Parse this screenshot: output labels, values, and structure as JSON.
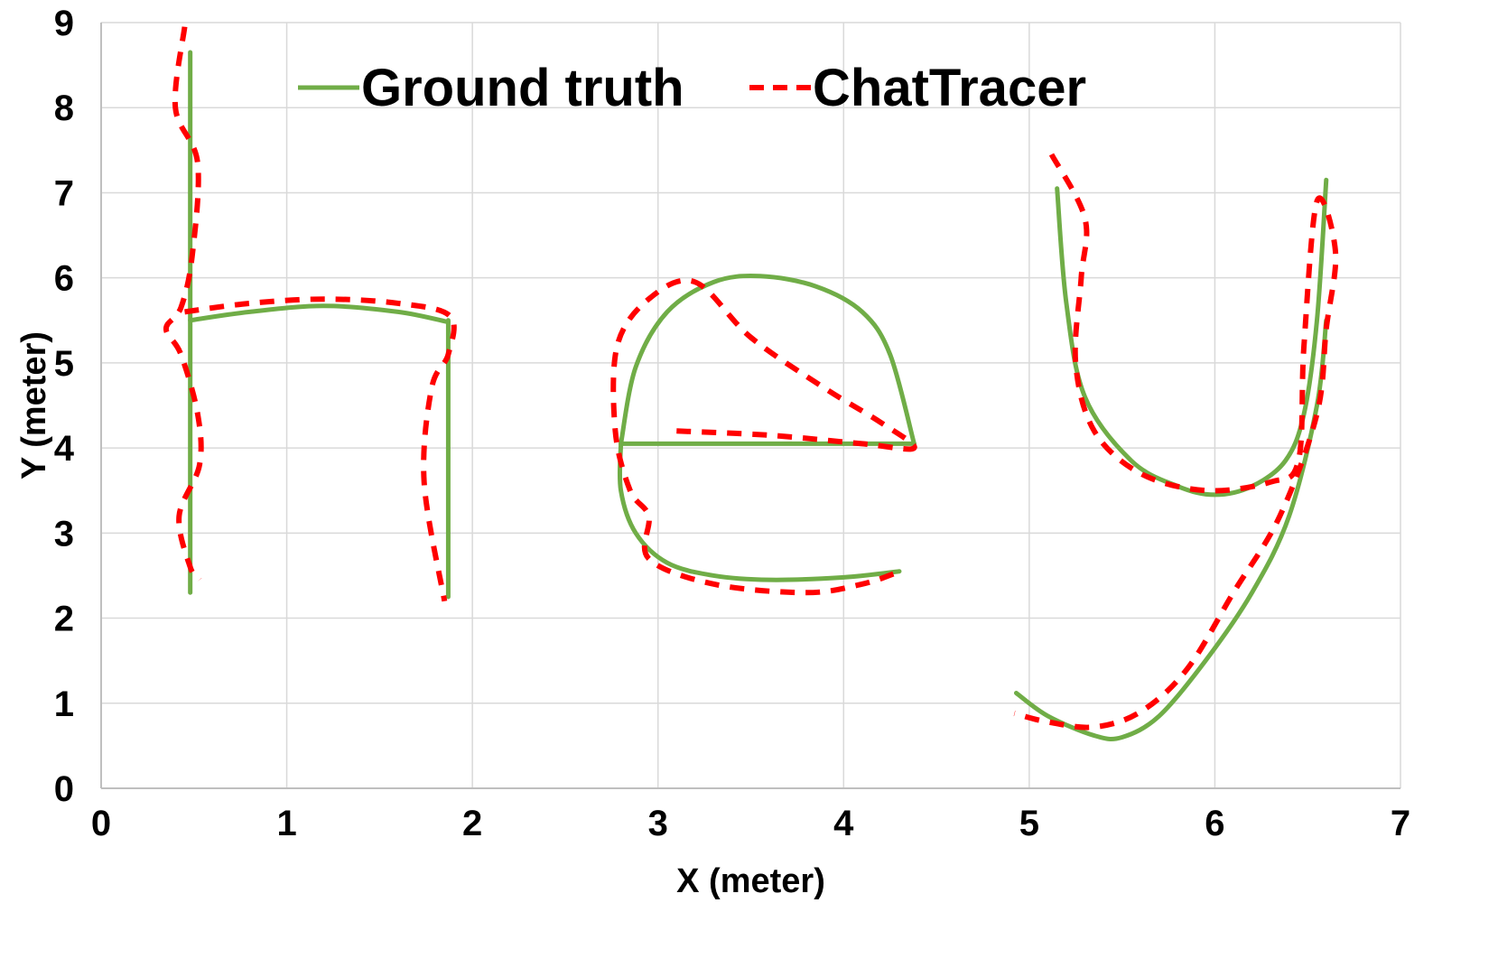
{
  "chart_data": {
    "type": "line",
    "title": "",
    "xlabel": "X (meter)",
    "ylabel": "Y (meter)",
    "xlim": [
      0,
      7
    ],
    "ylim": [
      0,
      9
    ],
    "xticks": [
      "0",
      "1",
      "2",
      "3",
      "4",
      "5",
      "6",
      "7"
    ],
    "yticks": [
      "0",
      "1",
      "2",
      "3",
      "4",
      "5",
      "6",
      "7",
      "8",
      "9"
    ],
    "grid": true,
    "legend_position": "top",
    "series": [
      {
        "name": "Ground truth",
        "color": "#70ad47",
        "style": "solid",
        "segments": [
          [
            [
              0.48,
              8.65
            ],
            [
              0.48,
              2.3
            ]
          ],
          [
            [
              0.48,
              5.5
            ],
            [
              0.8,
              5.6
            ],
            [
              1.2,
              5.67
            ],
            [
              1.6,
              5.6
            ],
            [
              1.87,
              5.48
            ]
          ],
          [
            [
              1.87,
              5.5
            ],
            [
              1.87,
              2.25
            ]
          ],
          [
            [
              4.38,
              4.05
            ],
            [
              2.8,
              4.05
            ]
          ],
          [
            [
              2.8,
              4.05
            ],
            [
              2.88,
              4.95
            ],
            [
              3.05,
              5.6
            ],
            [
              3.3,
              5.95
            ],
            [
              3.55,
              6.02
            ],
            [
              3.85,
              5.9
            ],
            [
              4.1,
              5.6
            ],
            [
              4.25,
              5.1
            ],
            [
              4.38,
              4.05
            ]
          ],
          [
            [
              2.8,
              4.05
            ],
            [
              2.8,
              3.5
            ],
            [
              2.88,
              3.0
            ],
            [
              3.05,
              2.65
            ],
            [
              3.3,
              2.5
            ],
            [
              3.6,
              2.45
            ],
            [
              4.0,
              2.48
            ],
            [
              4.3,
              2.55
            ]
          ],
          [
            [
              5.15,
              7.05
            ],
            [
              5.2,
              5.7
            ],
            [
              5.3,
              4.6
            ],
            [
              5.55,
              3.85
            ],
            [
              5.8,
              3.55
            ],
            [
              6.0,
              3.45
            ],
            [
              6.2,
              3.55
            ],
            [
              6.38,
              3.85
            ],
            [
              6.48,
              4.4
            ],
            [
              6.55,
              5.5
            ],
            [
              6.6,
              7.15
            ]
          ],
          [
            [
              6.6,
              5.5
            ],
            [
              6.55,
              4.5
            ],
            [
              6.4,
              3.2
            ],
            [
              6.2,
              2.3
            ],
            [
              5.95,
              1.5
            ],
            [
              5.7,
              0.85
            ],
            [
              5.5,
              0.6
            ],
            [
              5.35,
              0.62
            ],
            [
              5.1,
              0.85
            ],
            [
              4.93,
              1.12
            ]
          ]
        ]
      },
      {
        "name": "ChatTracer",
        "color": "#ff0000",
        "style": "dashed",
        "segments": [
          [
            [
              0.45,
              8.95
            ],
            [
              0.4,
              8.0
            ],
            [
              0.52,
              7.35
            ],
            [
              0.49,
              6.25
            ],
            [
              0.43,
              5.65
            ],
            [
              0.35,
              5.4
            ],
            [
              0.43,
              5.1
            ],
            [
              0.52,
              4.4
            ],
            [
              0.53,
              3.8
            ],
            [
              0.42,
              3.2
            ],
            [
              0.48,
              2.6
            ],
            [
              0.53,
              2.45
            ]
          ],
          [
            [
              0.45,
              5.6
            ],
            [
              0.8,
              5.7
            ],
            [
              1.2,
              5.75
            ],
            [
              1.6,
              5.7
            ],
            [
              1.88,
              5.55
            ],
            [
              1.87,
              5.1
            ],
            [
              1.78,
              4.7
            ],
            [
              1.74,
              3.6
            ],
            [
              1.85,
              2.2
            ]
          ],
          [
            [
              3.1,
              4.2
            ],
            [
              3.6,
              4.15
            ],
            [
              4.1,
              4.05
            ],
            [
              4.38,
              4.0
            ],
            [
              4.2,
              4.3
            ],
            [
              3.9,
              4.7
            ],
            [
              3.5,
              5.3
            ],
            [
              3.2,
              5.95
            ],
            [
              2.95,
              5.75
            ],
            [
              2.78,
              5.2
            ],
            [
              2.77,
              4.2
            ],
            [
              2.85,
              3.5
            ],
            [
              2.95,
              3.2
            ],
            [
              2.95,
              2.7
            ],
            [
              3.3,
              2.4
            ],
            [
              3.8,
              2.3
            ],
            [
              4.1,
              2.4
            ],
            [
              4.28,
              2.53
            ]
          ],
          [
            [
              5.12,
              7.45
            ],
            [
              5.3,
              6.7
            ],
            [
              5.28,
              6.0
            ],
            [
              5.25,
              5.0
            ],
            [
              5.35,
              4.2
            ],
            [
              5.6,
              3.7
            ],
            [
              5.95,
              3.5
            ],
            [
              6.3,
              3.6
            ],
            [
              6.45,
              3.85
            ],
            [
              6.48,
              5.2
            ],
            [
              6.55,
              6.9
            ],
            [
              6.65,
              6.3
            ],
            [
              6.6,
              5.4
            ],
            [
              6.55,
              4.4
            ],
            [
              6.35,
              3.2
            ],
            [
              6.1,
              2.3
            ],
            [
              5.85,
              1.4
            ],
            [
              5.6,
              0.9
            ],
            [
              5.35,
              0.72
            ],
            [
              5.1,
              0.78
            ],
            [
              4.92,
              0.88
            ]
          ]
        ]
      }
    ]
  }
}
